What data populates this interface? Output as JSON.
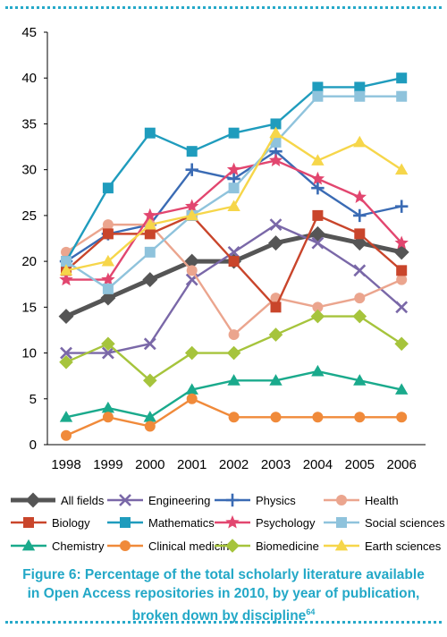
{
  "chart_data": {
    "type": "line",
    "x": [
      "1998",
      "1999",
      "2000",
      "2001",
      "2002",
      "2003",
      "2004",
      "2005",
      "2006"
    ],
    "ylim": [
      0,
      45
    ],
    "yticks": [
      "0",
      "5",
      "10",
      "15",
      "20",
      "25",
      "30",
      "35",
      "40",
      "45"
    ],
    "grid": false,
    "legend_position": "bottom",
    "series": [
      {
        "name": "All fields",
        "color": "#555555",
        "marker": "diamond",
        "values": [
          14,
          16,
          18,
          20,
          20,
          22,
          23,
          22,
          21
        ]
      },
      {
        "name": "Engineering",
        "color": "#7a68a8",
        "marker": "x",
        "values": [
          10,
          10,
          11,
          18,
          21,
          24,
          22,
          19,
          15
        ]
      },
      {
        "name": "Physics",
        "color": "#3a6bb4",
        "marker": "plus",
        "values": [
          20,
          23,
          24,
          30,
          29,
          32,
          28,
          25,
          26
        ]
      },
      {
        "name": "Health",
        "color": "#eba58e",
        "marker": "circle",
        "values": [
          21,
          24,
          24,
          19,
          12,
          16,
          15,
          16,
          18
        ]
      },
      {
        "name": "Biology",
        "color": "#c9452b",
        "marker": "square",
        "values": [
          19,
          23,
          23,
          25,
          20,
          15,
          25,
          23,
          19
        ]
      },
      {
        "name": "Mathematics",
        "color": "#1f9cbd",
        "marker": "square",
        "values": [
          20,
          28,
          34,
          32,
          34,
          35,
          39,
          39,
          40
        ]
      },
      {
        "name": "Psychology",
        "color": "#e2466f",
        "marker": "star",
        "values": [
          18,
          18,
          25,
          26,
          30,
          31,
          29,
          27,
          22
        ]
      },
      {
        "name": "Social sciences",
        "color": "#8fc3dc",
        "marker": "square",
        "values": [
          20,
          17,
          21,
          25,
          28,
          33,
          38,
          38,
          38
        ]
      },
      {
        "name": "Chemistry",
        "color": "#1aaa8c",
        "marker": "triangle",
        "values": [
          3,
          4,
          3,
          6,
          7,
          7,
          8,
          7,
          6
        ]
      },
      {
        "name": "Clinical medicine",
        "color": "#f08a3a",
        "marker": "circle",
        "values": [
          1,
          3,
          2,
          5,
          3,
          3,
          3,
          3,
          3
        ]
      },
      {
        "name": "Biomedicine",
        "color": "#a6c43c",
        "marker": "diamond",
        "values": [
          9,
          11,
          7,
          10,
          10,
          12,
          14,
          14,
          11
        ]
      },
      {
        "name": "Earth sciences",
        "color": "#f6d64a",
        "marker": "triangle",
        "values": [
          19,
          20,
          24,
          25,
          26,
          34,
          31,
          33,
          30
        ]
      }
    ]
  },
  "caption": {
    "text": "Figure 6: Percentage of the total scholarly literature available in Open Access repositories in 2010, by year of publication, broken down by discipline",
    "footnote": "64"
  },
  "colors": {
    "accent": "#26a9c9",
    "caption": "#23a8c7",
    "axis": "#000000"
  }
}
